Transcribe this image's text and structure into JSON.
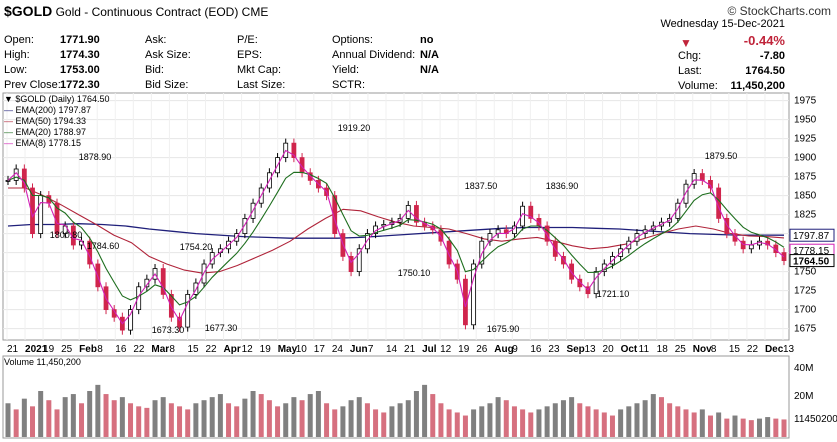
{
  "header": {
    "symbol": "$GOLD",
    "name": "Gold - Continuous Contract (EOD)",
    "exchange": "CME",
    "brand": "© StockCharts.com",
    "date": "Wednesday  15-Dec-2021",
    "change_pct": "-0.44%",
    "chg_label": "Chg:",
    "chg": "-7.80",
    "last_label": "Last:",
    "last": "1764.50",
    "volume_label": "Volume:",
    "volume": "11,450,200"
  },
  "quote": [
    {
      "label": "Open:",
      "value": "1771.90"
    },
    {
      "label": "High:",
      "value": "1774.30"
    },
    {
      "label": "Low:",
      "value": "1753.00"
    },
    {
      "label": "Prev Close:",
      "value": "1772.30"
    },
    {
      "label": "Ask:",
      "value": ""
    },
    {
      "label": "Ask Size:",
      "value": ""
    },
    {
      "label": "Bid:",
      "value": ""
    },
    {
      "label": "Bid Size:",
      "value": ""
    },
    {
      "label": "P/E:",
      "value": ""
    },
    {
      "label": "EPS:",
      "value": ""
    },
    {
      "label": "Mkt Cap:",
      "value": ""
    },
    {
      "label": "Last Size:",
      "value": ""
    },
    {
      "label": "Options:",
      "value": "no"
    },
    {
      "label": "Annual Dividend:",
      "value": "N/A"
    },
    {
      "label": "Yield:",
      "value": "N/A"
    },
    {
      "label": "SCTR:",
      "value": ""
    }
  ],
  "legend": [
    {
      "text": "$GOLD (Daily) 1764.50",
      "color": "#000000"
    },
    {
      "text": "EMA(200) 1797.87",
      "color": "#1f1f7a"
    },
    {
      "text": "EMA(50) 1794.33",
      "color": "#b0243a"
    },
    {
      "text": "EMA(20) 1788.97",
      "color": "#1e6e1e"
    },
    {
      "text": "EMA(8) 1778.15",
      "color": "#d11fb5"
    }
  ],
  "volume_legend": "Volume 11,450,200",
  "colors": {
    "up": "#000000",
    "down": "#d0254c",
    "ema200": "#1f1f7a",
    "ema50": "#b0243a",
    "ema20": "#1e6e1e",
    "ema8": "#d11fb5",
    "vol_up": "#808080",
    "vol_down": "#d6707f"
  },
  "chart_data": {
    "type": "line",
    "title": "$GOLD Gold - Continuous Contract (EOD)",
    "y_axis_ticks": [
      1675,
      1700,
      1725,
      1750,
      1775,
      1800,
      1825,
      1850,
      1875,
      1900,
      1925,
      1950,
      1975
    ],
    "ylim": [
      1660,
      1985
    ],
    "x_axis_labels": [
      "21",
      "2021",
      "19",
      "25",
      "Feb",
      "8",
      "16",
      "22",
      "Mar",
      "8",
      "15",
      "22",
      "Apr",
      "12",
      "19",
      "May",
      "10",
      "17",
      "24",
      "Jun",
      "7",
      "14",
      "21",
      "Jul",
      "12",
      "19",
      "26",
      "Aug",
      "9",
      "16",
      "23",
      "Sep",
      "13",
      "20",
      "Oct",
      "11",
      "18",
      "25",
      "Nov",
      "8",
      "15",
      "22",
      "Dec",
      "13"
    ],
    "price_labels": [
      "1878.90",
      "1800.80",
      "1784.60",
      "1673.30",
      "1754.20",
      "1677.30",
      "1919.20",
      "1750.10",
      "1837.50",
      "1675.90",
      "1836.90",
      "1721.10",
      "1879.50"
    ],
    "right_markers": [
      {
        "value": "1797.87",
        "price": 1797.87
      },
      {
        "value": "1778.15",
        "price": 1778.15
      },
      {
        "value": "1764.50",
        "price": 1764.5
      }
    ],
    "close_series": [
      1870,
      1885,
      1860,
      1800,
      1850,
      1840,
      1800,
      1810,
      1785,
      1790,
      1760,
      1730,
      1700,
      1690,
      1673,
      1700,
      1730,
      1740,
      1754,
      1720,
      1690,
      1677,
      1720,
      1735,
      1760,
      1775,
      1780,
      1790,
      1800,
      1820,
      1840,
      1860,
      1880,
      1900,
      1919,
      1900,
      1880,
      1870,
      1860,
      1850,
      1800,
      1770,
      1750,
      1780,
      1800,
      1810,
      1812,
      1815,
      1820,
      1837,
      1815,
      1810,
      1805,
      1790,
      1760,
      1740,
      1680,
      1760,
      1790,
      1800,
      1805,
      1800,
      1810,
      1836,
      1820,
      1810,
      1790,
      1770,
      1760,
      1740,
      1730,
      1721,
      1750,
      1760,
      1770,
      1780,
      1790,
      1800,
      1805,
      1810,
      1815,
      1820,
      1840,
      1865,
      1879,
      1870,
      1860,
      1820,
      1800,
      1790,
      1780,
      1785,
      1790,
      1785,
      1775,
      1764.5
    ],
    "ema200_series": [
      1810,
      1812,
      1812,
      1813,
      1812,
      1810,
      1806,
      1803,
      1800,
      1798,
      1796,
      1795,
      1794,
      1794,
      1794,
      1795,
      1797,
      1799,
      1801,
      1803,
      1805,
      1807,
      1808,
      1808,
      1808,
      1807,
      1806,
      1804,
      1802,
      1800,
      1799,
      1798,
      1798,
      1797.87
    ],
    "ema50_series": [
      1860,
      1860,
      1850,
      1838,
      1825,
      1812,
      1798,
      1788,
      1770,
      1760,
      1752,
      1748,
      1750,
      1758,
      1768,
      1778,
      1790,
      1806,
      1820,
      1832,
      1830,
      1822,
      1815,
      1810,
      1808,
      1806,
      1800,
      1793,
      1790,
      1793,
      1795,
      1790,
      1784,
      1780,
      1782,
      1786,
      1793,
      1800,
      1806,
      1810,
      1806,
      1800,
      1797,
      1796,
      1794.33
    ],
    "volume_axis_ticks": [
      "40M",
      "20M",
      "11450200"
    ],
    "volume_series": [
      22,
      18,
      25,
      20,
      30,
      24,
      18,
      26,
      28,
      22,
      30,
      34,
      28,
      24,
      26,
      22,
      20,
      19,
      24,
      26,
      22,
      20,
      18,
      22,
      24,
      26,
      28,
      22,
      20,
      25,
      30,
      28,
      24,
      20,
      22,
      26,
      24,
      28,
      30,
      22,
      18,
      20,
      24,
      26,
      22,
      18,
      16,
      20,
      22,
      24,
      30,
      34,
      28,
      22,
      18,
      16,
      14,
      18,
      20,
      22,
      26,
      24,
      20,
      18,
      16,
      18,
      20,
      22,
      24,
      26,
      22,
      20,
      18,
      16,
      14,
      18,
      20,
      22,
      24,
      28,
      26,
      22,
      20,
      18,
      16,
      18,
      14,
      16,
      12,
      14,
      12,
      11,
      12,
      13,
      12,
      11.45
    ]
  }
}
